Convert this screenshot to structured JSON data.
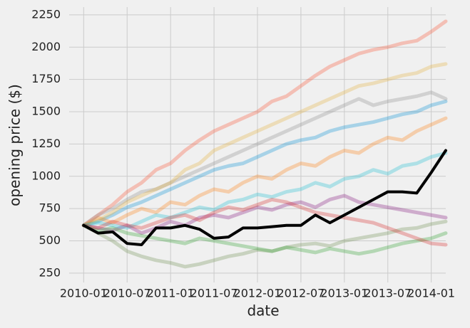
{
  "chart_data": {
    "type": "line",
    "x_label": "date",
    "y_label": "opening price ($)",
    "x": [
      "2010-01",
      "2010-03",
      "2010-05",
      "2010-07",
      "2010-09",
      "2010-11",
      "2011-01",
      "2011-03",
      "2011-05",
      "2011-07",
      "2011-09",
      "2011-11",
      "2012-01",
      "2012-03",
      "2012-05",
      "2012-07",
      "2012-09",
      "2012-11",
      "2013-01",
      "2013-03",
      "2013-05",
      "2013-07",
      "2013-09",
      "2013-11",
      "2014-01",
      "2014-03"
    ],
    "xlim": [
      "2009-11",
      "2014-03"
    ],
    "xticks": [
      "2010-01",
      "2010-07",
      "2011-01",
      "2011-07",
      "2012-01",
      "2012-07",
      "2013-01",
      "2013-07",
      "2014-01"
    ],
    "ylim": [
      178,
      2310
    ],
    "yticks": [
      250,
      500,
      750,
      1000,
      1250,
      1500,
      1750,
      2000,
      2250
    ],
    "grid": true,
    "series": [
      {
        "color": "#fc4f30",
        "values": [
          620,
          700,
          780,
          880,
          950,
          1050,
          1100,
          1200,
          1280,
          1350,
          1400,
          1450,
          1500,
          1580,
          1620,
          1700,
          1780,
          1850,
          1900,
          1950,
          1980,
          2000,
          2030,
          2050,
          2120,
          2200
        ]
      },
      {
        "color": "#6d904f",
        "values": [
          620,
          560,
          500,
          420,
          380,
          350,
          330,
          300,
          320,
          350,
          380,
          400,
          430,
          420,
          450,
          470,
          480,
          460,
          500,
          520,
          540,
          560,
          590,
          600,
          630,
          650
        ]
      },
      {
        "color": "#008fd5",
        "values": [
          620,
          650,
          700,
          760,
          800,
          850,
          900,
          950,
          1000,
          1050,
          1080,
          1100,
          1150,
          1200,
          1250,
          1280,
          1300,
          1350,
          1380,
          1400,
          1420,
          1450,
          1480,
          1500,
          1550,
          1580
        ]
      },
      {
        "color": "#ff7f0e",
        "values": [
          620,
          680,
          640,
          700,
          750,
          720,
          800,
          780,
          850,
          900,
          880,
          950,
          1000,
          980,
          1050,
          1100,
          1080,
          1150,
          1200,
          1180,
          1250,
          1300,
          1280,
          1350,
          1400,
          1450
        ]
      },
      {
        "color": "#810f7c",
        "values": [
          620,
          600,
          580,
          620,
          560,
          600,
          650,
          620,
          680,
          700,
          680,
          720,
          760,
          740,
          780,
          800,
          760,
          820,
          850,
          800,
          780,
          760,
          740,
          720,
          700,
          680
        ]
      },
      {
        "color": "#8b8b8b",
        "values": [
          620,
          700,
          750,
          820,
          880,
          900,
          950,
          1000,
          1050,
          1100,
          1150,
          1200,
          1250,
          1300,
          1350,
          1400,
          1450,
          1500,
          1550,
          1600,
          1550,
          1580,
          1600,
          1620,
          1650,
          1600
        ]
      },
      {
        "color": "#e5ae38",
        "values": [
          620,
          660,
          720,
          800,
          850,
          900,
          950,
          1050,
          1100,
          1200,
          1250,
          1300,
          1350,
          1400,
          1450,
          1500,
          1550,
          1600,
          1650,
          1700,
          1720,
          1750,
          1780,
          1800,
          1850,
          1870
        ]
      },
      {
        "color": "#2ca02c",
        "values": [
          620,
          580,
          600,
          560,
          540,
          520,
          500,
          480,
          520,
          500,
          480,
          460,
          440,
          420,
          450,
          430,
          410,
          440,
          420,
          400,
          420,
          450,
          480,
          500,
          520,
          560
        ]
      },
      {
        "color": "#17becf",
        "values": [
          620,
          640,
          620,
          600,
          650,
          700,
          680,
          720,
          760,
          740,
          800,
          820,
          860,
          840,
          880,
          900,
          950,
          920,
          980,
          1000,
          1050,
          1020,
          1080,
          1100,
          1150,
          1180
        ]
      },
      {
        "color": "#d62728",
        "values": [
          620,
          600,
          650,
          620,
          600,
          640,
          680,
          700,
          660,
          720,
          760,
          740,
          780,
          820,
          800,
          760,
          720,
          700,
          680,
          660,
          640,
          600,
          560,
          520,
          480,
          470
        ]
      },
      {
        "color": "#000000",
        "values": [
          620,
          560,
          570,
          480,
          470,
          600,
          600,
          620,
          590,
          520,
          530,
          600,
          600,
          610,
          620,
          620,
          700,
          640,
          700,
          760,
          820,
          880,
          880,
          870,
          1030,
          1200
        ]
      }
    ]
  }
}
